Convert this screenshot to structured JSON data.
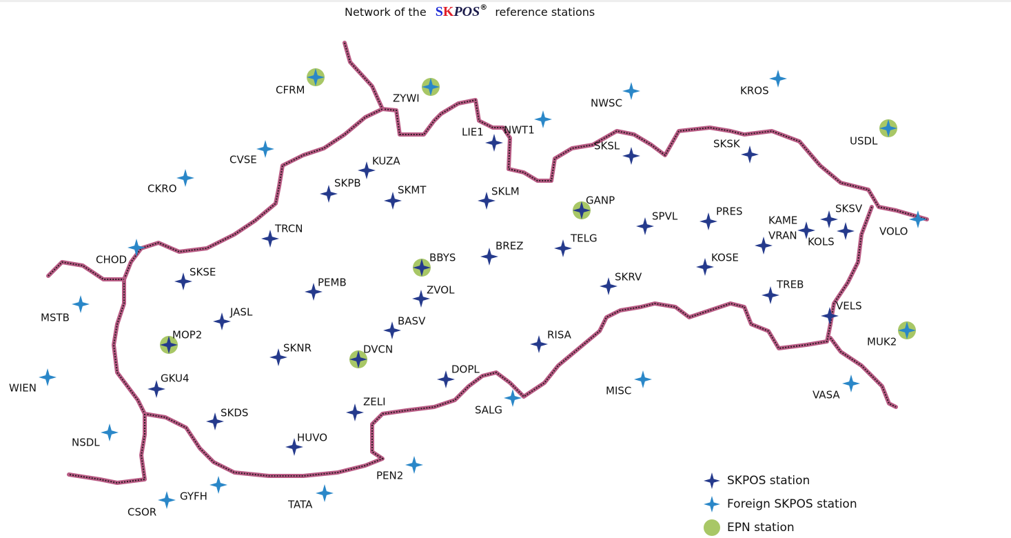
{
  "title": {
    "prefix": "Network of the",
    "brand_s": "S",
    "brand_k": "K",
    "brand_pos": "POS",
    "brand_mark": "®",
    "suffix": "reference stations"
  },
  "skpos_stations": [
    "LIE1",
    "SKSL",
    "SKSK",
    "KUZA",
    "SKPB",
    "SKMT",
    "SKLM",
    "GANP",
    "SPVL",
    "PRES",
    "KAME",
    "SKSV",
    "VRAN",
    "KOLS",
    "TRCN",
    "BREZ",
    "TELG",
    "BBYS",
    "KOSE",
    "SKSE",
    "PEMB",
    "SKRV",
    "TREB",
    "ZVOL",
    "VELS",
    "JASL",
    "BASV",
    "MOP2",
    "RISA",
    "SKNR",
    "DVCN",
    "DOPL",
    "GKU4",
    "ZELI",
    "SKDS",
    "HUVO"
  ],
  "foreign_stations": [
    "CFRM",
    "ZYWI",
    "NWT1",
    "NWSC",
    "KROS",
    "USDL",
    "CVSE",
    "CKRO",
    "CHOD",
    "VOLO",
    "MSTB",
    "MUK2",
    "WIEN",
    "MISC",
    "SALG",
    "VASA",
    "NSDL",
    "PEN2",
    "GYFH",
    "TATA",
    "CSOR"
  ],
  "legend": {
    "skpos": "SKPOS station",
    "foreign": "Foreign SKPOS station",
    "epn": "EPN station"
  }
}
